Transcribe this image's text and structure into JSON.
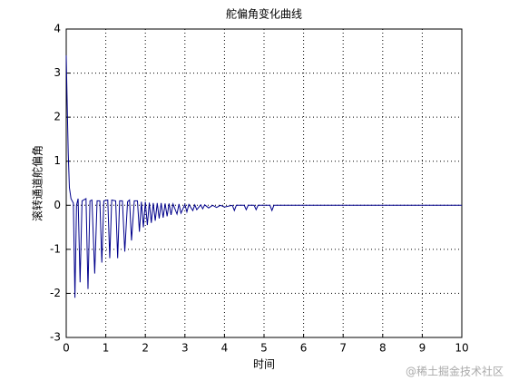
{
  "chart_data": {
    "type": "line",
    "title": "舵偏角变化曲线",
    "x_label": "时间",
    "y_label": "滚转通道舵偏角",
    "x": [
      0,
      0.02,
      0.05,
      0.08,
      0.12,
      0.18,
      0.22,
      0.26,
      0.3,
      0.35,
      0.4,
      0.5,
      0.55,
      0.6,
      0.65,
      0.72,
      0.78,
      0.85,
      0.9,
      0.95,
      1.05,
      1.1,
      1.15,
      1.25,
      1.3,
      1.35,
      1.42,
      1.48,
      1.55,
      1.6,
      1.65,
      1.72,
      1.8,
      1.85,
      1.9,
      1.95,
      2.0,
      2.05,
      2.1,
      2.15,
      2.2,
      2.25,
      2.3,
      2.35,
      2.4,
      2.45,
      2.5,
      2.55,
      2.6,
      2.65,
      2.7,
      2.8,
      2.85,
      2.9,
      3.0,
      3.05,
      3.1,
      3.2,
      3.25,
      3.3,
      3.4,
      3.45,
      3.5,
      3.6,
      3.7,
      3.8,
      3.9,
      4.0,
      4.2,
      4.25,
      4.3,
      4.5,
      4.55,
      4.6,
      4.75,
      4.8,
      4.85,
      5.15,
      5.2,
      5.25,
      10
    ],
    "series": [
      {
        "color": "#00008b",
        "values": [
          3.4,
          2.5,
          1.2,
          0.4,
          0.15,
          0.05,
          -2.1,
          0.0,
          0.15,
          -1.75,
          0.1,
          0.15,
          -1.9,
          0.1,
          0.12,
          -1.55,
          0.1,
          0.1,
          -1.3,
          0.1,
          0.12,
          -1.2,
          0.12,
          0.1,
          -1.2,
          0.1,
          0.1,
          -1.05,
          0.08,
          0.12,
          -0.8,
          0.1,
          0.1,
          -0.6,
          0.08,
          -0.5,
          0.08,
          -0.45,
          0.06,
          -0.4,
          0.05,
          -0.35,
          0.05,
          -0.3,
          0.05,
          -0.28,
          0.04,
          -0.25,
          0.04,
          -0.22,
          0.03,
          -0.2,
          0.03,
          -0.18,
          0.02,
          -0.15,
          0.02,
          -0.12,
          0.01,
          -0.1,
          0.01,
          -0.08,
          0.01,
          -0.06,
          0.0,
          -0.05,
          0.0,
          -0.04,
          0.0,
          -0.12,
          0.0,
          0.0,
          -0.1,
          0.0,
          0.0,
          -0.1,
          0.0,
          0.0,
          -0.12,
          0.0,
          0.0
        ]
      }
    ],
    "xlim": [
      0,
      10
    ],
    "ylim": [
      -3,
      4
    ],
    "xticks": [
      0,
      1,
      2,
      3,
      4,
      5,
      6,
      7,
      8,
      9,
      10
    ],
    "yticks": [
      -3,
      -2,
      -1,
      0,
      1,
      2,
      3,
      4
    ],
    "grid": true
  },
  "watermark": "@稀土掘金技术社区"
}
